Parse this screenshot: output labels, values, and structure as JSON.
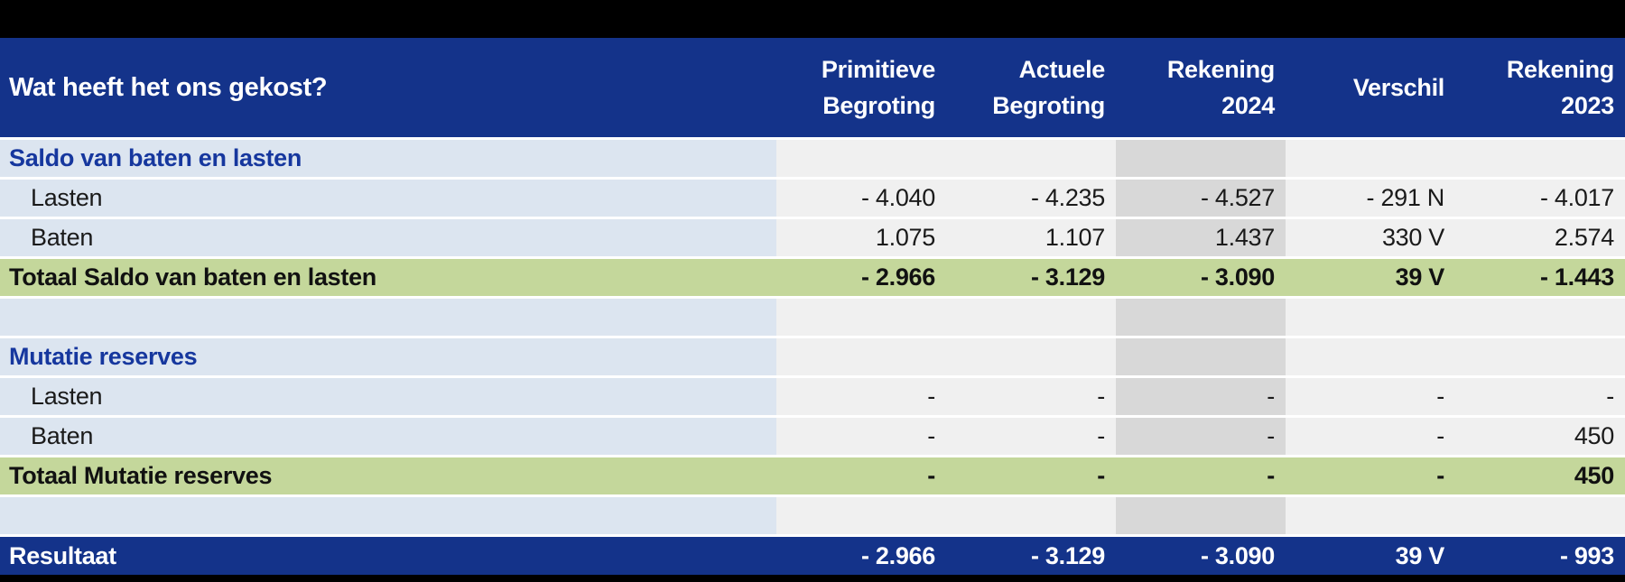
{
  "table": {
    "title_question": "Wat heeft het ons gekost?",
    "columns": [
      {
        "line1": "Primitieve",
        "line2": "Begroting"
      },
      {
        "line1": "Actuele",
        "line2": "Begroting"
      },
      {
        "line1": "Rekening",
        "line2": "2024"
      },
      {
        "line1": "Verschil",
        "line2": ""
      },
      {
        "line1": "Rekening",
        "line2": "2023"
      }
    ],
    "highlight_column_index": 2,
    "highlight_column_name": "Rekening 2024",
    "rows": [
      {
        "type": "section",
        "label": "Saldo van baten en lasten",
        "values": [
          "",
          "",
          "",
          "",
          ""
        ]
      },
      {
        "type": "data",
        "label": "Lasten",
        "values": [
          "- 4.040",
          "- 4.235",
          "- 4.527",
          "- 291 N",
          "- 4.017"
        ]
      },
      {
        "type": "data",
        "label": "Baten",
        "values": [
          "1.075",
          "1.107",
          "1.437",
          "330 V",
          "2.574"
        ]
      },
      {
        "type": "total",
        "label": "Totaal Saldo van baten en lasten",
        "values": [
          "- 2.966",
          "- 3.129",
          "- 3.090",
          "39 V",
          "- 1.443"
        ]
      },
      {
        "type": "spacer",
        "label": "",
        "values": [
          "",
          "",
          "",
          "",
          ""
        ]
      },
      {
        "type": "section",
        "label": "Mutatie reserves",
        "values": [
          "",
          "",
          "",
          "",
          ""
        ]
      },
      {
        "type": "data",
        "label": "Lasten",
        "values": [
          "-",
          "-",
          "-",
          "-",
          "-"
        ]
      },
      {
        "type": "data",
        "label": "Baten",
        "values": [
          "-",
          "-",
          "-",
          "-",
          "450"
        ]
      },
      {
        "type": "total",
        "label": "Totaal Mutatie reserves",
        "values": [
          "-",
          "-",
          "-",
          "-",
          "450"
        ]
      },
      {
        "type": "spacer",
        "label": "",
        "values": [
          "",
          "",
          "",
          "",
          ""
        ]
      },
      {
        "type": "result",
        "label": "Resultaat",
        "values": [
          "- 2.966",
          "- 3.129",
          "- 3.090",
          "39 V",
          "- 993"
        ]
      }
    ],
    "colors": {
      "header_bg": "#14338A",
      "section_text": "#16379E",
      "label_bg": "#DCE5F0",
      "cell_bg": "#F0F0F0",
      "highlight_bg": "#D8D8D8",
      "total_bg": "#C4D79B",
      "result_bg": "#14338A",
      "frame_bg": "#000000"
    }
  }
}
